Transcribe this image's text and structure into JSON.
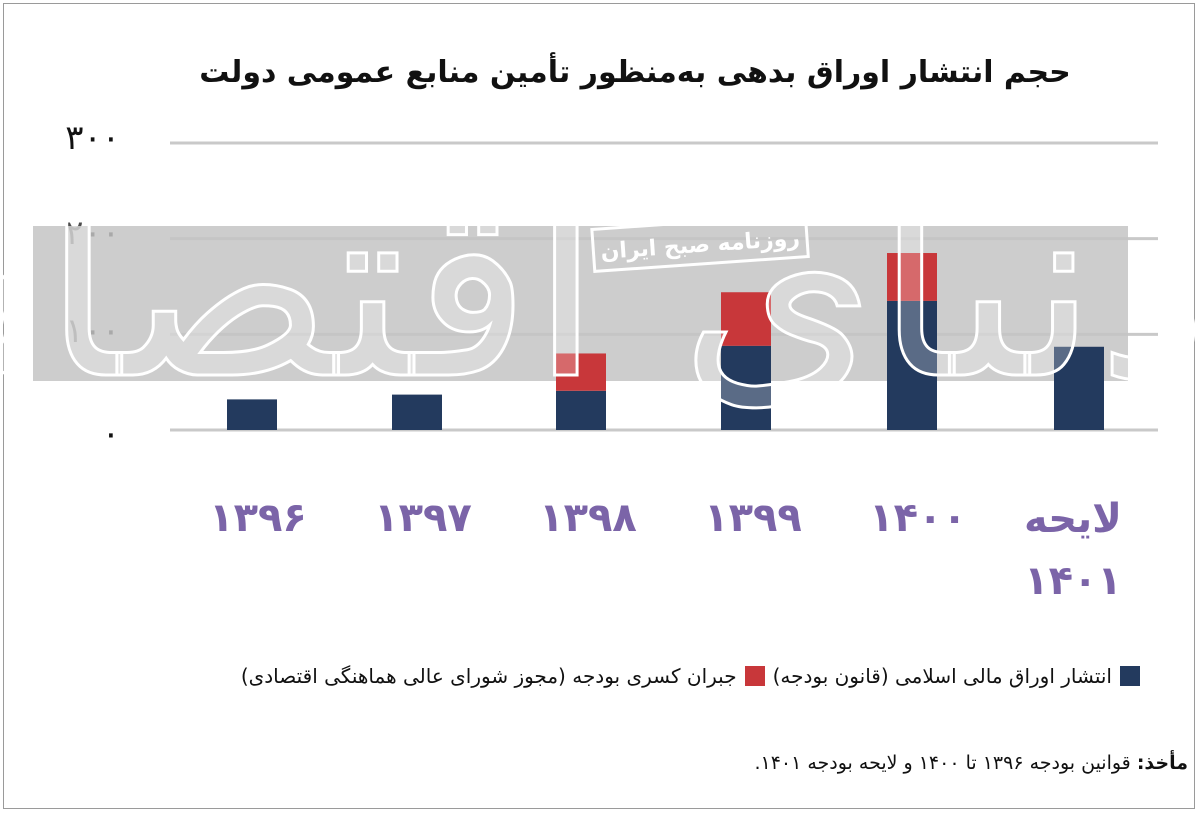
{
  "chart_data": {
    "type": "bar",
    "stacked": true,
    "title": "حجم انتشار اوراق بدهی به‌منظور تأمین منابع عمومی دولت",
    "categories": [
      "۱۳۹۶",
      "۱۳۹۷",
      "۱۳۹۸",
      "۱۳۹۹",
      "۱۴۰۰",
      "لایحه ۱۴۰۱"
    ],
    "series": [
      {
        "name": "انتشار اوراق مالی اسلامی (قانون بودجه)",
        "color": "#233a5e",
        "values": [
          32,
          37,
          41,
          88,
          135,
          87
        ]
      },
      {
        "name": "جبران کسری بودجه (مجوز شورای عالی هماهنگی اقتصادی)",
        "color": "#c8373a",
        "values": [
          0,
          0,
          39,
          56,
          50,
          0
        ]
      }
    ],
    "yticks": [
      "۰",
      "۱۰۰",
      "۲۰۰",
      "۳۰۰"
    ],
    "ylim": [
      0,
      300
    ],
    "grid": true,
    "legend_position": "bottom"
  },
  "watermark": {
    "newspaper": "روزنامه صبح ایران",
    "logo_text": "دنیای اقتصاد"
  },
  "source_label": "مأخذ:",
  "source_text": "قوانین بودجه ۱۳۹۶ تا ۱۴۰۰ و لایحه بودجه ۱۴۰۱."
}
